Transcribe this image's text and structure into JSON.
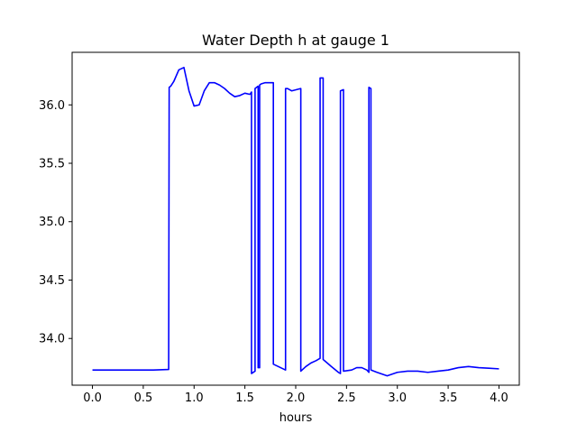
{
  "chart_data": {
    "type": "line",
    "title": "Water Depth h at gauge 1",
    "xlabel": "hours",
    "ylabel": "",
    "xlim": [
      -0.2,
      4.2
    ],
    "ylim": [
      33.6,
      36.45
    ],
    "xticks": [
      0.0,
      0.5,
      1.0,
      1.5,
      2.0,
      2.5,
      3.0,
      3.5,
      4.0
    ],
    "xtick_labels": [
      "0.0",
      "0.5",
      "1.0",
      "1.5",
      "2.0",
      "2.5",
      "3.0",
      "3.5",
      "4.0"
    ],
    "yticks": [
      34.0,
      34.5,
      35.0,
      35.5,
      36.0
    ],
    "ytick_labels": [
      "34.0",
      "34.5",
      "35.0",
      "35.5",
      "36.0"
    ],
    "grid": false,
    "series": [
      {
        "color": "#0000ff",
        "x": [
          0.0,
          0.2,
          0.4,
          0.6,
          0.75,
          0.755,
          0.77,
          0.8,
          0.85,
          0.9,
          0.95,
          1.0,
          1.05,
          1.1,
          1.15,
          1.2,
          1.25,
          1.3,
          1.35,
          1.4,
          1.45,
          1.5,
          1.55,
          1.565,
          1.565,
          1.6,
          1.6,
          1.63,
          1.63,
          1.645,
          1.645,
          1.66,
          1.7,
          1.78,
          1.78,
          1.9,
          1.9,
          1.92,
          1.96,
          2.05,
          2.05,
          2.1,
          2.15,
          2.2,
          2.24,
          2.24,
          2.27,
          2.27,
          2.35,
          2.42,
          2.44,
          2.44,
          2.47,
          2.47,
          2.55,
          2.6,
          2.65,
          2.7,
          2.72,
          2.72,
          2.74,
          2.74,
          2.8,
          2.9,
          3.0,
          3.1,
          3.2,
          3.3,
          3.4,
          3.5,
          3.6,
          3.7,
          3.8,
          3.9,
          4.0
        ],
        "y": [
          33.73,
          33.73,
          33.73,
          33.73,
          33.735,
          36.15,
          36.16,
          36.2,
          36.3,
          36.32,
          36.12,
          35.99,
          36.0,
          36.12,
          36.19,
          36.19,
          36.17,
          36.14,
          36.1,
          36.07,
          36.08,
          36.1,
          36.09,
          36.11,
          33.7,
          33.72,
          36.14,
          36.16,
          33.75,
          33.75,
          36.17,
          36.18,
          36.19,
          36.19,
          33.78,
          33.73,
          36.14,
          36.14,
          36.12,
          36.14,
          33.72,
          33.76,
          33.79,
          33.81,
          33.83,
          36.23,
          36.23,
          33.82,
          33.76,
          33.71,
          33.7,
          36.12,
          36.13,
          33.72,
          33.73,
          33.75,
          33.75,
          33.73,
          33.71,
          36.15,
          36.14,
          33.73,
          33.71,
          33.68,
          33.71,
          33.72,
          33.72,
          33.71,
          33.72,
          33.73,
          33.75,
          33.76,
          33.75,
          33.745,
          33.74
        ]
      }
    ]
  }
}
